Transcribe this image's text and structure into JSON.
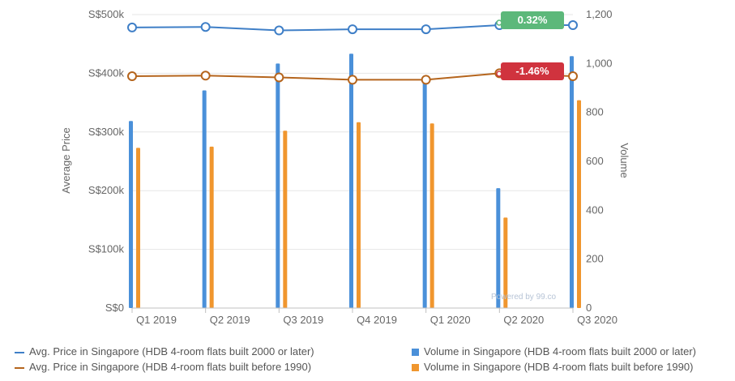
{
  "chart_data": {
    "type": "bar+line",
    "categories": [
      "Q1 2019",
      "Q2 2019",
      "Q3 2019",
      "Q4 2019",
      "Q1 2020",
      "Q2 2020",
      "Q3 2020"
    ],
    "y_left": {
      "label": "Average Price",
      "range": [
        0,
        500000
      ],
      "ticks": [
        "S$0",
        "S$100k",
        "S$200k",
        "S$300k",
        "S$400k",
        "S$500k"
      ]
    },
    "y_right": {
      "label": "Volume",
      "range": [
        0,
        1200
      ],
      "ticks": [
        "0",
        "200",
        "400",
        "600",
        "800",
        "1,000",
        "1,200"
      ]
    },
    "series": [
      {
        "name": "Avg. Price in Singapore (HDB 4-room flats built 2000 or later)",
        "kind": "line",
        "axis": "left",
        "color": "#3f7fc7",
        "values": [
          478000,
          479000,
          473000,
          475000,
          475000,
          482000,
          482000
        ]
      },
      {
        "name": "Avg. Price in Singapore (HDB 4-room flats built before 1990)",
        "kind": "line",
        "axis": "left",
        "color": "#b5651d",
        "values": [
          395000,
          396000,
          393000,
          389000,
          389000,
          400000,
          395000
        ]
      },
      {
        "name": "Volume in Singapore (HDB 4-room flats built 2000 or later)",
        "kind": "bar",
        "axis": "right",
        "color": "#4a90d9",
        "values": [
          765,
          890,
          1000,
          1040,
          950,
          490,
          1030
        ]
      },
      {
        "name": "Volume in Singapore (HDB 4-room flats built before 1990)",
        "kind": "bar",
        "axis": "right",
        "color": "#f0962e",
        "values": [
          655,
          660,
          725,
          760,
          755,
          370,
          850
        ]
      }
    ],
    "badges": [
      {
        "text": "0.32%",
        "series": 0,
        "color": "#5cb87a"
      },
      {
        "text": "-1.46%",
        "series": 1,
        "color": "#d0333e"
      }
    ],
    "watermark": "Powered by 99.co",
    "grid": "horizontal",
    "legend_position": "bottom"
  }
}
